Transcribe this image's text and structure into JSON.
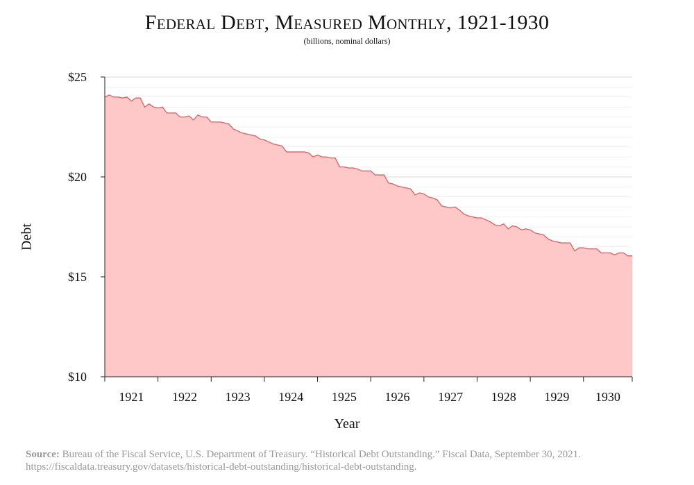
{
  "chart_data": {
    "type": "area",
    "title": "Federal Debt, Measured Monthly, 1921-1930",
    "subtitle": "(billions, nominal dollars)",
    "xlabel": "Year",
    "ylabel": "Debt",
    "ylim": [
      10,
      25
    ],
    "y_ticks": [
      {
        "value": 10,
        "label": "$10"
      },
      {
        "value": 15,
        "label": "$15"
      },
      {
        "value": 20,
        "label": "$20"
      },
      {
        "value": 25,
        "label": "$25"
      }
    ],
    "x_tick_labels": [
      "1921",
      "1922",
      "1923",
      "1924",
      "1925",
      "1926",
      "1927",
      "1928",
      "1929",
      "1930"
    ],
    "grid": true,
    "fill_color": "#ffc8c8",
    "line_color": "#d9696e",
    "series": [
      {
        "values": [
          24.0,
          24.1,
          24.0,
          24.0,
          23.95,
          24.0,
          23.8,
          23.95,
          23.95,
          23.5,
          23.65,
          23.5,
          23.45,
          23.5,
          23.2,
          23.2,
          23.2,
          23.0,
          23.0,
          23.05,
          22.85,
          23.1,
          23.0,
          23.0,
          22.75,
          22.75,
          22.75,
          22.7,
          22.65,
          22.4,
          22.3,
          22.2,
          22.15,
          22.1,
          22.05,
          21.9,
          21.85,
          21.75,
          21.65,
          21.6,
          21.55,
          21.25,
          21.25,
          21.25,
          21.25,
          21.25,
          21.2,
          21.0,
          21.1,
          21.0,
          21.0,
          20.95,
          20.95,
          20.5,
          20.5,
          20.45,
          20.45,
          20.4,
          20.3,
          20.3,
          20.3,
          20.1,
          20.1,
          20.1,
          19.7,
          19.65,
          19.55,
          19.5,
          19.45,
          19.4,
          19.1,
          19.2,
          19.15,
          19.0,
          18.95,
          18.85,
          18.55,
          18.5,
          18.45,
          18.5,
          18.35,
          18.15,
          18.05,
          18.0,
          17.95,
          17.95,
          17.85,
          17.75,
          17.6,
          17.55,
          17.65,
          17.4,
          17.55,
          17.5,
          17.35,
          17.4,
          17.35,
          17.2,
          17.15,
          17.1,
          16.9,
          16.8,
          16.75,
          16.7,
          16.7,
          16.7,
          16.3,
          16.45,
          16.45,
          16.4,
          16.4,
          16.4,
          16.2,
          16.2,
          16.2,
          16.1,
          16.2,
          16.2,
          16.05,
          16.05
        ]
      }
    ]
  },
  "source": {
    "label": "Source:",
    "text": "Bureau of the Fiscal Service, U.S. Department of Treasury. “Historical Debt Outstanding.” Fiscal Data, September 30, 2021. https://fiscaldata.treasury.gov/datasets/historical-debt-outstanding/historical-debt-outstanding."
  }
}
